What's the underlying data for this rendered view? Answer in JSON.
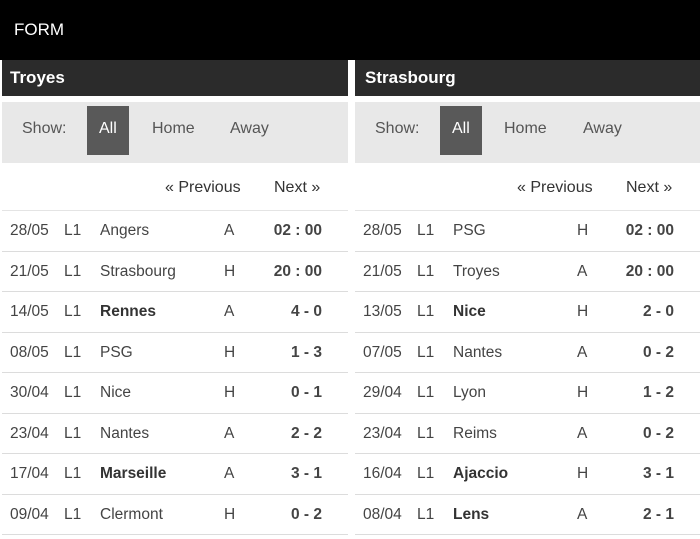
{
  "header": {
    "title": "FORM"
  },
  "left": {
    "team": "Troyes",
    "filter": {
      "show_label": "Show:",
      "all": "All",
      "home": "Home",
      "away": "Away"
    },
    "nav": {
      "prev": "« Previous",
      "next": "Next »"
    },
    "matches": [
      {
        "date": "28/05",
        "comp": "L1",
        "opp": "Angers",
        "venue": "A",
        "score": "02 : 00",
        "bold": false
      },
      {
        "date": "21/05",
        "comp": "L1",
        "opp": "Strasbourg",
        "venue": "H",
        "score": "20 : 00",
        "bold": false
      },
      {
        "date": "14/05",
        "comp": "L1",
        "opp": "Rennes",
        "venue": "A",
        "score": "4 - 0",
        "bold": true
      },
      {
        "date": "08/05",
        "comp": "L1",
        "opp": "PSG",
        "venue": "H",
        "score": "1 - 3",
        "bold": false
      },
      {
        "date": "30/04",
        "comp": "L1",
        "opp": "Nice",
        "venue": "H",
        "score": "0 - 1",
        "bold": false
      },
      {
        "date": "23/04",
        "comp": "L1",
        "opp": "Nantes",
        "venue": "A",
        "score": "2 - 2",
        "bold": false
      },
      {
        "date": "17/04",
        "comp": "L1",
        "opp": "Marseille",
        "venue": "A",
        "score": "3 - 1",
        "bold": true
      },
      {
        "date": "09/04",
        "comp": "L1",
        "opp": "Clermont",
        "venue": "H",
        "score": "0 - 2",
        "bold": false
      }
    ]
  },
  "right": {
    "team": "Strasbourg",
    "filter": {
      "show_label": "Show:",
      "all": "All",
      "home": "Home",
      "away": "Away"
    },
    "nav": {
      "prev": "« Previous",
      "next": "Next »"
    },
    "matches": [
      {
        "date": "28/05",
        "comp": "L1",
        "opp": "PSG",
        "venue": "H",
        "score": "02 : 00",
        "bold": false
      },
      {
        "date": "21/05",
        "comp": "L1",
        "opp": "Troyes",
        "venue": "A",
        "score": "20 : 00",
        "bold": false
      },
      {
        "date": "13/05",
        "comp": "L1",
        "opp": "Nice",
        "venue": "H",
        "score": "2 - 0",
        "bold": true
      },
      {
        "date": "07/05",
        "comp": "L1",
        "opp": "Nantes",
        "venue": "A",
        "score": "0 - 2",
        "bold": false
      },
      {
        "date": "29/04",
        "comp": "L1",
        "opp": "Lyon",
        "venue": "H",
        "score": "1 - 2",
        "bold": false
      },
      {
        "date": "23/04",
        "comp": "L1",
        "opp": "Reims",
        "venue": "A",
        "score": "0 - 2",
        "bold": false
      },
      {
        "date": "16/04",
        "comp": "L1",
        "opp": "Ajaccio",
        "venue": "H",
        "score": "3 - 1",
        "bold": true
      },
      {
        "date": "08/04",
        "comp": "L1",
        "opp": "Lens",
        "venue": "A",
        "score": "2 - 1",
        "bold": true
      }
    ]
  }
}
